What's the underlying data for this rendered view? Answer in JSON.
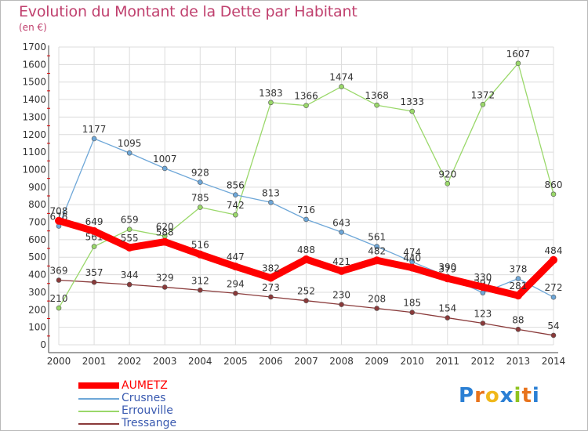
{
  "header": {
    "title": "Evolution du Montant de la Dette par Habitant",
    "subtitle": "(en €)"
  },
  "logo": {
    "text": "Proxiti",
    "colors": [
      "#2a7fd4",
      "#e8731c",
      "#f0b81b",
      "#2a7fd4",
      "#8fc31f",
      "#e8731c",
      "#2a7fd4"
    ]
  },
  "chart_data": {
    "type": "line",
    "title": "Evolution du Montant de la Dette par Habitant",
    "subtitle": "(en €)",
    "xlabel": "",
    "ylabel": "",
    "x": [
      "2000",
      "2001",
      "2002",
      "2003",
      "2004",
      "2005",
      "2006",
      "2007",
      "2008",
      "2009",
      "2010",
      "2011",
      "2012",
      "2013",
      "2014"
    ],
    "ylim": [
      0,
      1700
    ],
    "yticks": [
      0,
      100,
      200,
      300,
      400,
      500,
      600,
      700,
      800,
      900,
      1000,
      1100,
      1200,
      1300,
      1400,
      1500,
      1600,
      1700
    ],
    "grid": true,
    "legend_position": "bottom-left",
    "series": [
      {
        "name": "AUMETZ",
        "color": "#ff0000",
        "width": 9,
        "values": [
          708,
          649,
          555,
          588,
          516,
          447,
          382,
          488,
          421,
          482,
          440,
          379,
          330,
          281,
          484
        ]
      },
      {
        "name": "Crusnes",
        "color": "#6ea7d8",
        "width": 1.3,
        "values": [
          678,
          1177,
          1095,
          1007,
          928,
          856,
          813,
          716,
          643,
          561,
          474,
          390,
          297,
          378,
          272
        ]
      },
      {
        "name": "Errouville",
        "color": "#9ad86a",
        "width": 1.3,
        "values": [
          210,
          561,
          659,
          620,
          785,
          742,
          1383,
          1366,
          1474,
          1368,
          1333,
          920,
          1372,
          1607,
          860
        ]
      },
      {
        "name": "Tressange",
        "color": "#8a3a3a",
        "width": 1.3,
        "values": [
          369,
          357,
          344,
          329,
          312,
          294,
          273,
          252,
          230,
          208,
          185,
          154,
          123,
          88,
          54
        ]
      }
    ]
  }
}
